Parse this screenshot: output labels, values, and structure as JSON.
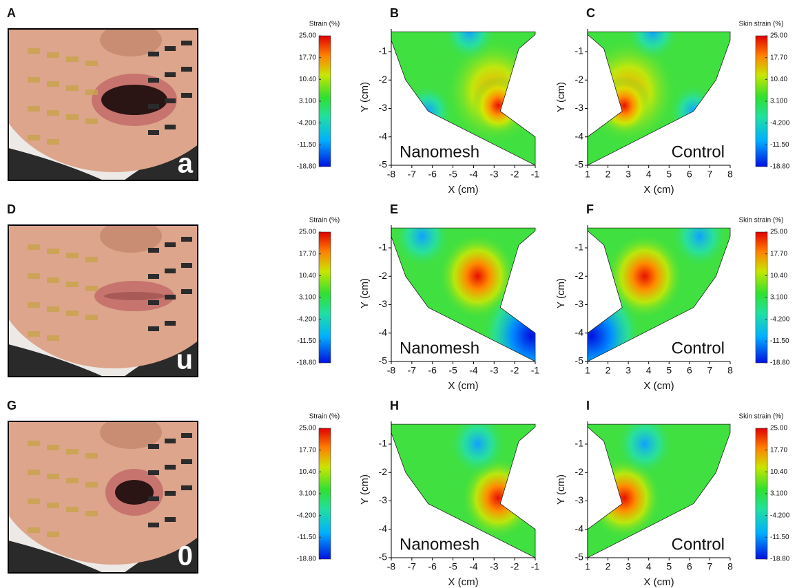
{
  "rows": [
    {
      "photo": {
        "panel": "A",
        "letter": "a"
      },
      "maps": [
        {
          "panel": "B",
          "label": "Nanomesh"
        },
        {
          "panel": "C",
          "label": "Control"
        }
      ]
    },
    {
      "photo": {
        "panel": "D",
        "letter": "u"
      },
      "maps": [
        {
          "panel": "E",
          "label": "Nanomesh"
        },
        {
          "panel": "F",
          "label": "Control"
        }
      ]
    },
    {
      "photo": {
        "panel": "G",
        "letter": "0"
      },
      "maps": [
        {
          "panel": "H",
          "label": "Nanomesh"
        },
        {
          "panel": "I",
          "label": "Control"
        }
      ]
    }
  ],
  "colorbar_left": {
    "title": "Strain (%)"
  },
  "colorbar_right": {
    "title": "Skin strain (%)"
  },
  "colorbar_ticks": [
    "25.00",
    "17.70",
    "10.40",
    "3.100",
    "-4.200",
    "-11.50",
    "-18.80"
  ],
  "axes": {
    "x_label": "X (cm)",
    "y_label": "Y (cm)",
    "nanomesh_xticks": [
      -8,
      -7,
      -6,
      -5,
      -4,
      -3,
      -2,
      -1
    ],
    "control_xticks": [
      1,
      2,
      3,
      4,
      5,
      6,
      7,
      8
    ],
    "yticks": [
      -1,
      -2,
      -3,
      -4,
      -5
    ]
  }
}
